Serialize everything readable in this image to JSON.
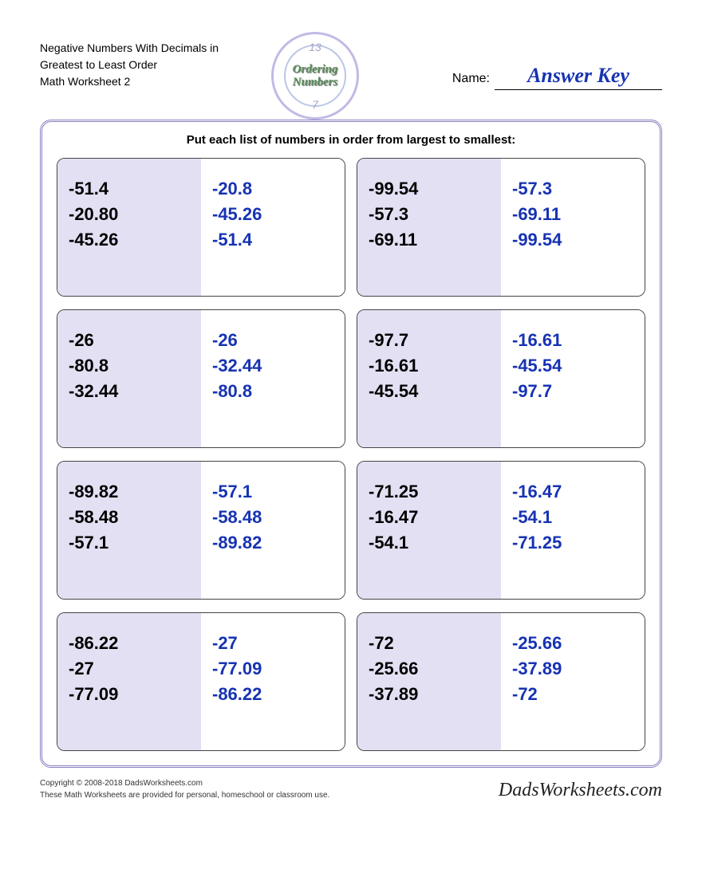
{
  "header": {
    "title_line1": "Negative Numbers With Decimals in",
    "title_line2": "Greatest to Least Order",
    "title_line3": "Math Worksheet 2",
    "logo_text": "Ordering Numbers",
    "logo_top_num": "13",
    "logo_bot_num": "7",
    "name_label": "Name:",
    "name_value": "Answer Key"
  },
  "instruction": "Put each list of numbers in order from largest to smallest:",
  "colors": {
    "question_bg": "#e4e0f3",
    "question_text": "#000000",
    "answer_text": "#1733b3",
    "border_outer": "#8a7fc0",
    "border_cell": "#444444"
  },
  "problems": [
    {
      "q": [
        "-51.4",
        "-20.80",
        "-45.26"
      ],
      "a": [
        "-20.8",
        "-45.26",
        "-51.4"
      ]
    },
    {
      "q": [
        "-99.54",
        "-57.3",
        "-69.11"
      ],
      "a": [
        "-57.3",
        "-69.11",
        "-99.54"
      ]
    },
    {
      "q": [
        "-26",
        "-80.8",
        "-32.44"
      ],
      "a": [
        "-26",
        "-32.44",
        "-80.8"
      ]
    },
    {
      "q": [
        "-97.7",
        "-16.61",
        "-45.54"
      ],
      "a": [
        "-16.61",
        "-45.54",
        "-97.7"
      ]
    },
    {
      "q": [
        "-89.82",
        "-58.48",
        "-57.1"
      ],
      "a": [
        "-57.1",
        "-58.48",
        "-89.82"
      ]
    },
    {
      "q": [
        "-71.25",
        "-16.47",
        "-54.1"
      ],
      "a": [
        "-16.47",
        "-54.1",
        "-71.25"
      ]
    },
    {
      "q": [
        "-86.22",
        "-27",
        "-77.09"
      ],
      "a": [
        "-27",
        "-77.09",
        "-86.22"
      ]
    },
    {
      "q": [
        "-72",
        "-25.66",
        "-37.89"
      ],
      "a": [
        "-25.66",
        "-37.89",
        "-72"
      ]
    }
  ],
  "footer": {
    "copyright": "Copyright © 2008-2018 DadsWorksheets.com",
    "disclaimer": "These Math Worksheets are provided for personal, homeschool or classroom use.",
    "brand": "DadsWorksheets.com"
  }
}
